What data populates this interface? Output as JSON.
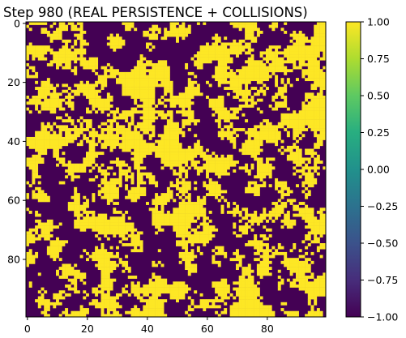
{
  "chart_data": {
    "type": "heatmap",
    "title": "Step 980 (REAL PERSISTENCE + COLLISIONS)",
    "xlabel": "",
    "ylabel": "",
    "grid": false,
    "rows": 100,
    "cols": 100,
    "xlim": [
      -0.5,
      99.5
    ],
    "ylim": [
      99.5,
      -0.5
    ],
    "x_ticks": [
      0,
      20,
      40,
      60,
      80
    ],
    "y_ticks": [
      0,
      20,
      40,
      60,
      80
    ],
    "colorbar": {
      "min": -1.0,
      "max": 1.0,
      "ticks": [
        -1.0,
        -0.75,
        -0.5,
        -0.25,
        0.0,
        0.25,
        0.5,
        0.75,
        1.0
      ],
      "tick_labels": [
        "−1.00",
        "−0.75",
        "−0.50",
        "−0.25",
        "0.00",
        "0.25",
        "0.50",
        "0.75",
        "1.00"
      ],
      "colormap": "viridis",
      "placement": "right"
    },
    "values_legend": {
      "low_value": -1,
      "high_value": 1,
      "low_color": "#440154",
      "high_color": "#fde725"
    },
    "seed": 980
  }
}
